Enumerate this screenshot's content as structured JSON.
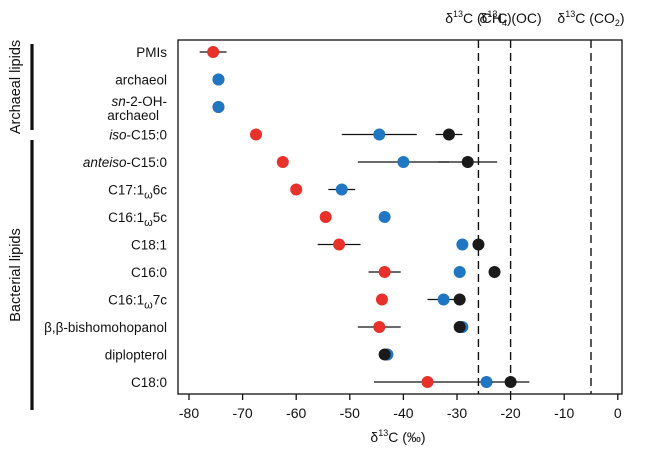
{
  "chart_data": {
    "type": "scatter",
    "xlabel": "δ13C (‰)",
    "xlim": [
      -82,
      2
    ],
    "x_ticks": [
      -80,
      -70,
      -60,
      -50,
      -40,
      -30,
      -20,
      -10,
      0
    ],
    "grid": false,
    "groups": [
      {
        "label": "Archaeal lipids",
        "categories": [
          "PMIs",
          "archaeol",
          "sn-2-OH-archaeol"
        ]
      },
      {
        "label": "Bacterial lipids",
        "categories": [
          "iso-C15:0",
          "anteiso-C15:0",
          "C17:1ω6c",
          "C16:1ω5c",
          "C18:1",
          "C16:0",
          "C16:1ω7c",
          "β,β-bishomohopanol",
          "diplopterol",
          "C18:0"
        ]
      }
    ],
    "categories": [
      "PMIs",
      "archaeol",
      "sn-2-OH-archaeol",
      "iso-C15:0",
      "anteiso-C15:0",
      "C17:1ω6c",
      "C16:1ω5c",
      "C18:1",
      "C16:0",
      "C16:1ω7c",
      "β,β-bishomohopanol",
      "diplopterol",
      "C18:0"
    ],
    "series": [
      {
        "color": "#e8312a",
        "values": [
          -75.5,
          -74.5,
          -74.5,
          -67.5,
          -62.5,
          -60,
          -54.5,
          -52,
          -43.5,
          -44,
          -44.5,
          -43,
          -35.5
        ],
        "err": [
          2.5,
          null,
          null,
          null,
          null,
          null,
          null,
          4,
          3,
          null,
          4,
          null,
          10
        ]
      },
      {
        "color": "#1f77c4",
        "values": [
          null,
          -74.5,
          -74.5,
          -44.5,
          -40,
          -51.5,
          -43.5,
          -29,
          -29.5,
          -32.5,
          -29,
          -43,
          -24.5
        ],
        "err": [
          null,
          null,
          null,
          7,
          8.5,
          2.5,
          null,
          null,
          null,
          3,
          null,
          null,
          null
        ]
      },
      {
        "color": "#1a1a1a",
        "values": [
          null,
          null,
          null,
          -31.5,
          -28,
          null,
          null,
          -26,
          -23,
          -29.5,
          -29.5,
          -43.5,
          -20
        ],
        "err": [
          null,
          null,
          null,
          2.5,
          5.5,
          null,
          null,
          null,
          null,
          null,
          null,
          null,
          3.5
        ]
      }
    ],
    "reference_lines": [
      {
        "label_text": "C (CH",
        "label_sub": "4",
        "x": -26
      },
      {
        "label_text": "C (OC)",
        "label_sub": "",
        "x": -20
      },
      {
        "label_text": "C (CO",
        "label_sub": "2",
        "x": -5
      }
    ]
  }
}
